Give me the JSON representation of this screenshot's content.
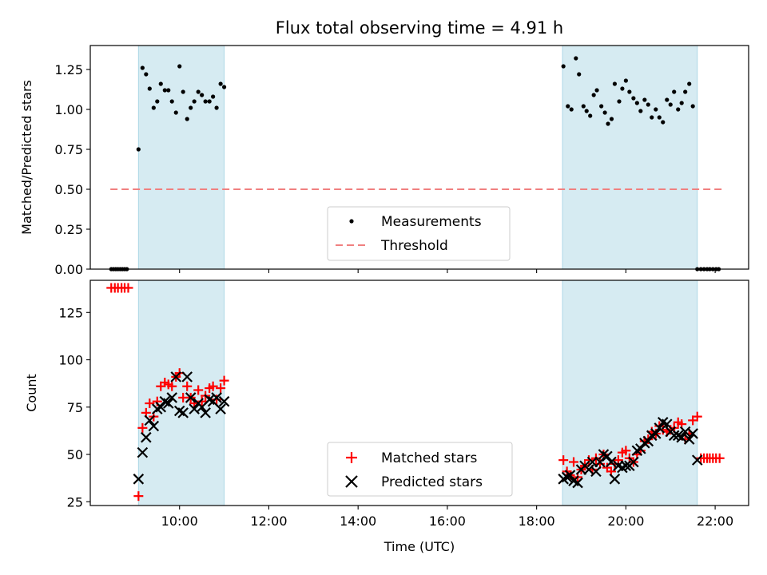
{
  "chart_data": {
    "title": "Flux total observing time = 4.91 h",
    "xlabel": "Time (UTC)",
    "x_unit": "hours UTC",
    "xlim": [
      8.0,
      22.75
    ],
    "x_ticks": [
      {
        "value": 10,
        "label": "10:00"
      },
      {
        "value": 12,
        "label": "12:00"
      },
      {
        "value": 14,
        "label": "14:00"
      },
      {
        "value": 16,
        "label": "16:00"
      },
      {
        "value": 18,
        "label": "18:00"
      },
      {
        "value": 20,
        "label": "20:00"
      },
      {
        "value": 22,
        "label": "22:00"
      }
    ],
    "shaded_intervals": [
      [
        9.08,
        11.0
      ],
      [
        18.58,
        21.6
      ]
    ],
    "shade_color": "#add8e6",
    "panels": [
      {
        "type": "scatter",
        "ylabel": "Matched/Predicted stars",
        "ylim": [
          0,
          1.4
        ],
        "y_ticks": [
          "0.00",
          "0.25",
          "0.50",
          "0.75",
          "1.00",
          "1.25"
        ],
        "legend_position": "lower-center",
        "threshold": {
          "name": "Threshold",
          "value": 0.5,
          "x_range": [
            8.45,
            22.15
          ],
          "color": "#f08080"
        },
        "series": [
          {
            "name": "Measurements",
            "color": "#000000",
            "x": [
              8.47,
              8.52,
              8.57,
              8.62,
              8.67,
              8.72,
              8.77,
              8.82,
              9.08,
              9.17,
              9.25,
              9.33,
              9.42,
              9.5,
              9.58,
              9.67,
              9.75,
              9.83,
              9.92,
              10.0,
              10.08,
              10.17,
              10.25,
              10.33,
              10.42,
              10.5,
              10.58,
              10.67,
              10.75,
              10.83,
              10.92,
              11.0,
              18.6,
              18.7,
              18.78,
              18.88,
              18.95,
              19.05,
              19.12,
              19.2,
              19.28,
              19.35,
              19.45,
              19.53,
              19.6,
              19.68,
              19.75,
              19.85,
              19.92,
              20.0,
              20.08,
              20.17,
              20.25,
              20.33,
              20.42,
              20.5,
              20.58,
              20.67,
              20.75,
              20.83,
              20.92,
              21.0,
              21.08,
              21.17,
              21.25,
              21.33,
              21.42,
              21.5,
              21.6,
              21.68,
              21.75,
              21.82,
              21.88,
              21.95,
              22.02,
              22.08
            ],
            "y": [
              0.0,
              0.0,
              0.0,
              0.0,
              0.0,
              0.0,
              0.0,
              0.0,
              0.75,
              1.26,
              1.22,
              1.13,
              1.01,
              1.05,
              1.16,
              1.12,
              1.12,
              1.05,
              0.98,
              1.27,
              1.11,
              0.94,
              1.01,
              1.05,
              1.11,
              1.09,
              1.05,
              1.05,
              1.08,
              1.01,
              1.16,
              1.14,
              1.27,
              1.02,
              1.0,
              1.32,
              1.22,
              1.02,
              0.99,
              0.96,
              1.09,
              1.12,
              1.02,
              0.98,
              0.91,
              0.94,
              1.16,
              1.05,
              1.13,
              1.18,
              1.11,
              1.07,
              1.04,
              0.99,
              1.06,
              1.03,
              0.95,
              1.0,
              0.95,
              0.92,
              1.06,
              1.03,
              1.11,
              1.0,
              1.04,
              1.11,
              1.16,
              1.02,
              0.0,
              0.0,
              0.0,
              0.0,
              0.0,
              0.0,
              0.0,
              0.0
            ]
          }
        ]
      },
      {
        "type": "scatter",
        "ylabel": "Count",
        "ylim": [
          23,
          142
        ],
        "y_ticks": [
          "25",
          "50",
          "75",
          "100",
          "125"
        ],
        "legend_position": "lower-center",
        "series": [
          {
            "name": "Matched stars",
            "marker": "+",
            "color": "#ff0000",
            "x": [
              8.47,
              8.55,
              8.62,
              8.7,
              8.77,
              8.85,
              9.08,
              9.17,
              9.25,
              9.33,
              9.42,
              9.5,
              9.58,
              9.67,
              9.75,
              9.83,
              9.92,
              10.0,
              10.08,
              10.17,
              10.25,
              10.33,
              10.42,
              10.5,
              10.58,
              10.67,
              10.75,
              10.83,
              10.92,
              11.0,
              18.6,
              18.68,
              18.75,
              18.83,
              18.92,
              19.0,
              19.08,
              19.17,
              19.25,
              19.33,
              19.42,
              19.5,
              19.58,
              19.67,
              19.75,
              19.83,
              19.92,
              20.0,
              20.08,
              20.17,
              20.25,
              20.33,
              20.42,
              20.5,
              20.58,
              20.67,
              20.75,
              20.83,
              20.92,
              21.0,
              21.08,
              21.17,
              21.25,
              21.33,
              21.42,
              21.5,
              21.6,
              21.68,
              21.75,
              21.82,
              21.88,
              21.95,
              22.02,
              22.1
            ],
            "y": [
              138,
              138,
              138,
              138,
              138,
              138,
              28,
              64,
              72,
              77,
              70,
              78,
              86,
              88,
              87,
              86,
              91,
              93,
              80,
              86,
              80,
              77,
              84,
              78,
              81,
              85,
              86,
              79,
              85,
              89,
              47,
              41,
              39,
              46,
              38,
              42,
              44,
              47,
              42,
              48,
              45,
              50,
              43,
              41,
              45,
              47,
              51,
              52,
              48,
              46,
              50,
              52,
              57,
              58,
              62,
              61,
              65,
              63,
              62,
              63,
              64,
              67,
              66,
              58,
              61,
              68,
              70,
              48,
              48,
              48,
              48,
              48,
              48,
              48
            ]
          },
          {
            "name": "Predicted stars",
            "marker": "x",
            "color": "#000000",
            "x": [
              9.08,
              9.17,
              9.25,
              9.33,
              9.42,
              9.5,
              9.58,
              9.67,
              9.75,
              9.83,
              9.92,
              10.0,
              10.08,
              10.17,
              10.25,
              10.33,
              10.42,
              10.5,
              10.58,
              10.67,
              10.75,
              10.83,
              10.92,
              11.0,
              18.6,
              18.68,
              18.75,
              18.83,
              18.92,
              19.0,
              19.08,
              19.17,
              19.25,
              19.33,
              19.42,
              19.5,
              19.58,
              19.67,
              19.75,
              19.83,
              19.92,
              20.0,
              20.08,
              20.17,
              20.25,
              20.33,
              20.42,
              20.5,
              20.58,
              20.67,
              20.75,
              20.83,
              20.92,
              21.0,
              21.08,
              21.17,
              21.25,
              21.33,
              21.42,
              21.5,
              21.6
            ],
            "y": [
              37,
              51,
              59,
              68,
              65,
              74,
              75,
              78,
              77,
              80,
              91,
              73,
              72,
              91,
              80,
              74,
              77,
              75,
              72,
              79,
              78,
              80,
              74,
              78,
              37,
              38,
              39,
              36,
              35,
              42,
              44,
              42,
              46,
              41,
              46,
              50,
              49,
              46,
              37,
              44,
              43,
              44,
              44,
              46,
              52,
              53,
              56,
              57,
              60,
              61,
              64,
              67,
              66,
              62,
              60,
              60,
              59,
              62,
              58,
              61,
              47
            ]
          }
        ]
      }
    ]
  }
}
